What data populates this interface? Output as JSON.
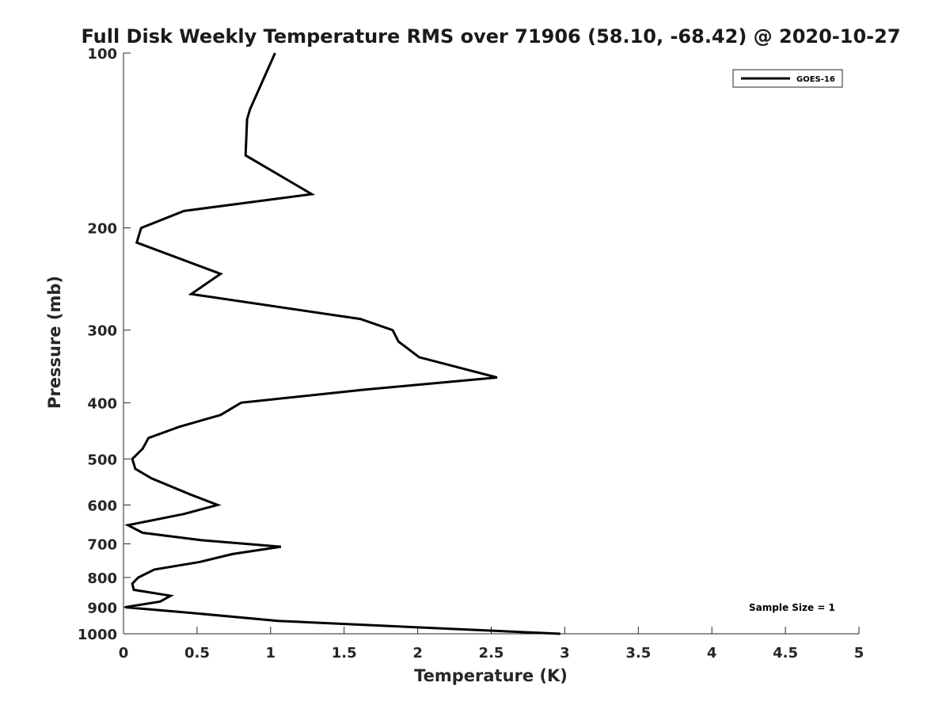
{
  "chart_data": {
    "type": "line",
    "title": "Full Disk Weekly Temperature RMS over 71906 (58.10, -68.42) @ 2020-10-27",
    "xlabel": "Temperature (K)",
    "ylabel": "Pressure (mb)",
    "xlim": [
      0,
      5
    ],
    "ylim": [
      1000,
      100
    ],
    "yscale": "log",
    "y_reversed": true,
    "x_ticks": [
      0,
      0.5,
      1,
      1.5,
      2,
      2.5,
      3,
      3.5,
      4,
      4.5,
      5
    ],
    "x_tick_labels": [
      "0",
      "0.5",
      "1",
      "1.5",
      "2",
      "2.5",
      "3",
      "3.5",
      "4",
      "4.5",
      "5"
    ],
    "y_ticks": [
      100,
      200,
      300,
      400,
      500,
      600,
      700,
      800,
      900,
      1000
    ],
    "y_tick_labels": [
      "100",
      "200",
      "300",
      "400",
      "500",
      "600",
      "700",
      "800",
      "900",
      "1000"
    ],
    "grid": false,
    "legend_position": "top-right",
    "annotation": "Sample Size = 1",
    "series": [
      {
        "name": "GOES-16",
        "color": "#000000",
        "x": [
          1.03,
          0.86,
          0.84,
          0.83,
          1.28,
          0.41,
          0.12,
          0.09,
          0.66,
          0.46,
          1.61,
          1.83,
          1.87,
          2.01,
          2.54,
          1.63,
          0.8,
          0.66,
          0.38,
          0.17,
          0.13,
          0.06,
          0.08,
          0.19,
          0.45,
          0.64,
          0.41,
          0.03,
          0.13,
          0.53,
          1.07,
          0.74,
          0.52,
          0.21,
          0.1,
          0.06,
          0.07,
          0.32,
          0.25,
          0.01,
          0.45,
          1.05,
          2.0,
          2.97
        ],
        "y": [
          100,
          125,
          130,
          150,
          175,
          187,
          200,
          212,
          240,
          260,
          287,
          300,
          314,
          334,
          362,
          380,
          400,
          420,
          440,
          460,
          480,
          500,
          520,
          540,
          575,
          600,
          622,
          650,
          670,
          690,
          708,
          729,
          752,
          775,
          800,
          820,
          840,
          860,
          880,
          900,
          920,
          950,
          975,
          1000
        ]
      }
    ]
  }
}
